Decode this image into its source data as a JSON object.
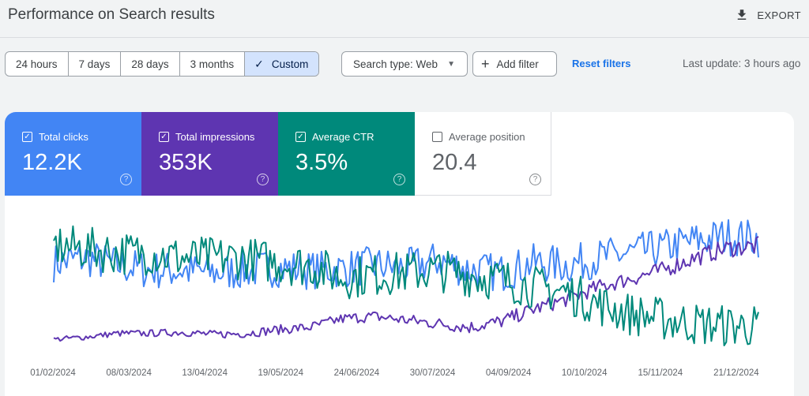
{
  "header": {
    "title": "Performance on Search results",
    "export_label": "EXPORT",
    "export_icon": "download-icon"
  },
  "toolbar": {
    "ranges": [
      "24 hours",
      "7 days",
      "28 days",
      "3 months",
      "Custom"
    ],
    "selected_range": "Custom",
    "search_type_label": "Search type: Web",
    "add_filter_label": "Add filter",
    "reset_label": "Reset filters",
    "last_update": "Last update: 3 hours ago"
  },
  "metrics": [
    {
      "label": "Total clicks",
      "value": "12.2K",
      "checked": true,
      "color": "#4285f4"
    },
    {
      "label": "Total impressions",
      "value": "353K",
      "checked": true,
      "color": "#5e35b1"
    },
    {
      "label": "Average CTR",
      "value": "3.5%",
      "checked": true,
      "color": "#00897b"
    },
    {
      "label": "Average position",
      "value": "20.4",
      "checked": false,
      "color": "#e8710a"
    }
  ],
  "chart_data": {
    "type": "line",
    "x_tick_labels": [
      "01/02/2024",
      "08/03/2024",
      "13/04/2024",
      "19/05/2024",
      "24/06/2024",
      "30/07/2024",
      "04/09/2024",
      "10/10/2024",
      "15/11/2024",
      "21/12/2024"
    ],
    "x_range": [
      "01/02/2024",
      "30/12/2024"
    ],
    "grid": false,
    "series": [
      {
        "name": "Total clicks",
        "color": "#4285f4",
        "anchors": [
          0.68,
          0.72,
          0.66,
          0.62,
          0.62,
          0.6,
          0.62,
          0.64,
          0.62,
          0.63,
          0.66,
          0.64,
          0.7,
          0.62,
          0.6,
          0.68,
          0.66,
          0.72,
          0.76,
          0.8,
          0.86,
          0.9,
          0.88
        ]
      },
      {
        "name": "Total impressions",
        "color": "#5e35b1",
        "anchors": [
          0.05,
          0.07,
          0.1,
          0.1,
          0.11,
          0.09,
          0.1,
          0.13,
          0.15,
          0.22,
          0.24,
          0.21,
          0.18,
          0.15,
          0.2,
          0.3,
          0.38,
          0.48,
          0.55,
          0.62,
          0.72,
          0.8,
          0.82
        ]
      },
      {
        "name": "Average CTR",
        "color": "#00897b",
        "anchors": [
          0.82,
          0.8,
          0.76,
          0.76,
          0.72,
          0.72,
          0.72,
          0.68,
          0.66,
          0.56,
          0.58,
          0.6,
          0.62,
          0.58,
          0.54,
          0.48,
          0.44,
          0.34,
          0.26,
          0.22,
          0.18,
          0.16,
          0.16
        ]
      }
    ]
  }
}
